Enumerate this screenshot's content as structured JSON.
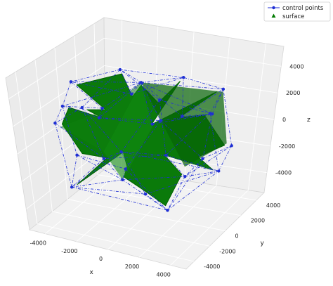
{
  "chart_data": {
    "type": "scatter",
    "projection": "3d",
    "grid": true,
    "legend_placement": "top-right",
    "xlabel": "x",
    "ylabel": "y",
    "zlabel": "z",
    "xlim": [
      -5000,
      5000
    ],
    "ylim": [
      -5000,
      5000
    ],
    "zlim": [
      -5500,
      5500
    ],
    "x_ticks": [
      "-4000",
      "-2000",
      "0",
      "2000",
      "4000"
    ],
    "y_ticks": [
      "-4000",
      "-2000",
      "0",
      "2000",
      "4000"
    ],
    "z_ticks": [
      "-4000",
      "-2000",
      "0",
      "2000",
      "4000"
    ],
    "series": [
      {
        "name": "control points",
        "marker": "circle",
        "line_style": "dashdot",
        "color": "#1f2fd4",
        "points": [
          [
            0,
            0,
            4000
          ],
          [
            3000,
            -3000,
            3200
          ],
          [
            4200,
            0,
            2600
          ],
          [
            3000,
            3000,
            2800
          ],
          [
            0,
            4200,
            2500
          ],
          [
            -3000,
            3000,
            3000
          ],
          [
            -4200,
            0,
            3200
          ],
          [
            -3000,
            -3000,
            3000
          ],
          [
            0,
            -4200,
            3300
          ],
          [
            1500,
            -1500,
            2000
          ],
          [
            1500,
            1500,
            1200
          ],
          [
            -1500,
            1500,
            2200
          ],
          [
            -1500,
            -1500,
            2500
          ],
          [
            4500,
            -1500,
            200
          ],
          [
            4500,
            1500,
            -300
          ],
          [
            1500,
            4500,
            0
          ],
          [
            -1500,
            4500,
            400
          ],
          [
            -4500,
            1500,
            600
          ],
          [
            -4500,
            -1500,
            800
          ],
          [
            -1500,
            -4500,
            500
          ],
          [
            1500,
            -4500,
            200
          ],
          [
            2500,
            0,
            -2200
          ],
          [
            0,
            2500,
            -2400
          ],
          [
            -2500,
            0,
            -2000
          ],
          [
            0,
            -2500,
            -1800
          ],
          [
            3000,
            -3000,
            -3000
          ],
          [
            3000,
            3000,
            -3200
          ],
          [
            -3000,
            3000,
            -3000
          ],
          [
            -3000,
            -3000,
            -2800
          ],
          [
            0,
            0,
            -4000
          ]
        ]
      },
      {
        "name": "surface",
        "marker": "triangle",
        "color": "#007a00"
      }
    ]
  }
}
